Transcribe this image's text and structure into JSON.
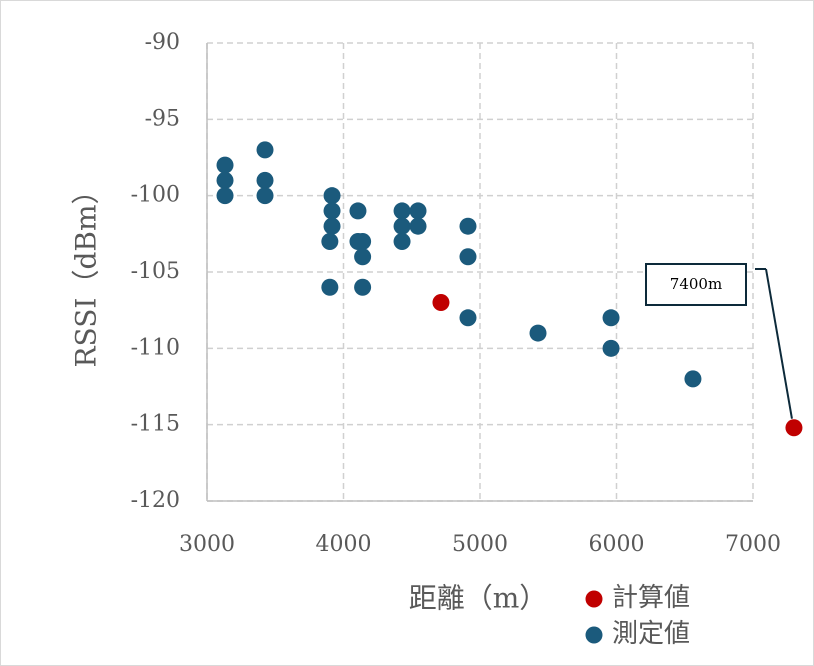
{
  "chart_data": {
    "type": "scatter",
    "x_label": "距離（m）",
    "y_label": "RSSI（dBm）",
    "xlim": [
      3000,
      7000
    ],
    "xticks": [
      3000,
      4000,
      5000,
      6000,
      7000
    ],
    "ylim": [
      -120,
      -90
    ],
    "yticks": [
      -120,
      -115,
      -110,
      -105,
      -100,
      -95,
      -90
    ],
    "grid": true,
    "legend": "bottom-right",
    "series": [
      {
        "name": "計算値",
        "color": "#c00000",
        "x": [
          4714,
          7300
        ],
        "values": [
          -107,
          -115.2
        ]
      },
      {
        "name": "測定値",
        "color": "#1b5a7c",
        "x": [
          3132,
          3132,
          3132,
          3425,
          3425,
          3425,
          3916,
          3916,
          3916,
          3900,
          3900,
          4106,
          4106,
          4140,
          4140,
          4140,
          4429,
          4429,
          4429,
          4546,
          4546,
          4912,
          4912,
          4912,
          5425,
          5960,
          5960,
          6560
        ],
        "values": [
          -98,
          -99,
          -100,
          -97,
          -99,
          -100,
          -100,
          -101,
          -102,
          -103,
          -106,
          -101,
          -103,
          -103,
          -104,
          -106,
          -101,
          -102,
          -103,
          -101,
          -102,
          -102,
          -104,
          -108,
          -109,
          -108,
          -110,
          -112
        ]
      }
    ],
    "annotation": "7400m"
  }
}
